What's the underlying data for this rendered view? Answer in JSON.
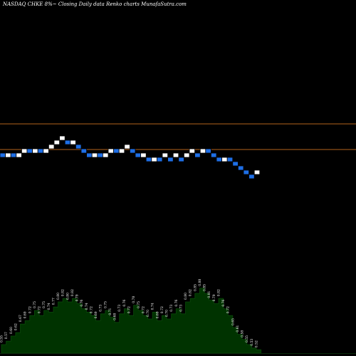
{
  "header": {
    "caption": "NASDAQ CHKE 8%~  Closing Daily data  Renko  charts MunafaSutra.com"
  },
  "colors": {
    "background": "#000000",
    "up_brick": "#ffffff",
    "down_brick": "#1e6fe6",
    "brick_border": "#000000",
    "reference_line": "#b5651d",
    "volume_fill": "#003300",
    "volume_stroke": "#0a4a0a",
    "text": "#ffffff"
  },
  "chart_data": [
    {
      "type": "renko",
      "title": "NASDAQ CHKE 8%~  Closing Daily data  Renko  charts MunafaSutra.com",
      "brick_size_note": "8%",
      "reference_levels": [
        0.86,
        0.63
      ],
      "bricks": [
        {
          "dir": "down",
          "level": 0
        },
        {
          "dir": "up",
          "level": 0
        },
        {
          "dir": "down",
          "level": 0
        },
        {
          "dir": "up",
          "level": 0
        },
        {
          "dir": "up",
          "level": 1
        },
        {
          "dir": "down",
          "level": 1
        },
        {
          "dir": "up",
          "level": 1
        },
        {
          "dir": "down",
          "level": 1
        },
        {
          "dir": "up",
          "level": 1
        },
        {
          "dir": "up",
          "level": 2
        },
        {
          "dir": "up",
          "level": 3
        },
        {
          "dir": "up",
          "level": 4
        },
        {
          "dir": "down",
          "level": 3
        },
        {
          "dir": "up",
          "level": 3
        },
        {
          "dir": "down",
          "level": 2
        },
        {
          "dir": "down",
          "level": 1
        },
        {
          "dir": "down",
          "level": 0
        },
        {
          "dir": "up",
          "level": 0
        },
        {
          "dir": "down",
          "level": 0
        },
        {
          "dir": "up",
          "level": 0
        },
        {
          "dir": "up",
          "level": 1
        },
        {
          "dir": "down",
          "level": 1
        },
        {
          "dir": "up",
          "level": 1
        },
        {
          "dir": "up",
          "level": 2
        },
        {
          "dir": "down",
          "level": 1
        },
        {
          "dir": "down",
          "level": 0
        },
        {
          "dir": "up",
          "level": 0
        },
        {
          "dir": "down",
          "level": -1
        },
        {
          "dir": "up",
          "level": -1
        },
        {
          "dir": "down",
          "level": -1
        },
        {
          "dir": "up",
          "level": 0
        },
        {
          "dir": "down",
          "level": -1
        },
        {
          "dir": "up",
          "level": 0
        },
        {
          "dir": "down",
          "level": -1
        },
        {
          "dir": "up",
          "level": 0
        },
        {
          "dir": "up",
          "level": 1
        },
        {
          "dir": "down",
          "level": 0
        },
        {
          "dir": "up",
          "level": 1
        },
        {
          "dir": "down",
          "level": 1
        },
        {
          "dir": "down",
          "level": 0
        },
        {
          "dir": "down",
          "level": -1
        },
        {
          "dir": "up",
          "level": -1
        },
        {
          "dir": "down",
          "level": -1
        },
        {
          "dir": "down",
          "level": -2
        },
        {
          "dir": "down",
          "level": -3
        },
        {
          "dir": "down",
          "level": -4
        },
        {
          "dir": "down",
          "level": -5
        },
        {
          "dir": "up",
          "level": -4
        }
      ]
    },
    {
      "type": "area",
      "values": [
        0.55,
        0.57,
        0.6,
        0.62,
        0.67,
        0.69,
        0.72,
        0.75,
        0.72,
        0.75,
        0.74,
        0.77,
        0.8,
        0.82,
        0.8,
        0.82,
        0.79,
        0.76,
        0.74,
        0.72,
        0.69,
        0.73,
        0.75,
        0.71,
        0.68,
        0.73,
        0.76,
        0.72,
        0.78,
        0.75,
        0.72,
        0.7,
        0.74,
        0.69,
        0.72,
        0.7,
        0.73,
        0.76,
        0.73,
        0.8,
        0.82,
        0.85,
        0.88,
        0.85,
        0.81,
        0.79,
        0.82,
        0.76,
        0.72,
        0.65,
        0.61,
        0.58,
        0.55,
        0.53,
        0.52
      ],
      "ylim": [
        0.5,
        0.9
      ]
    }
  ]
}
